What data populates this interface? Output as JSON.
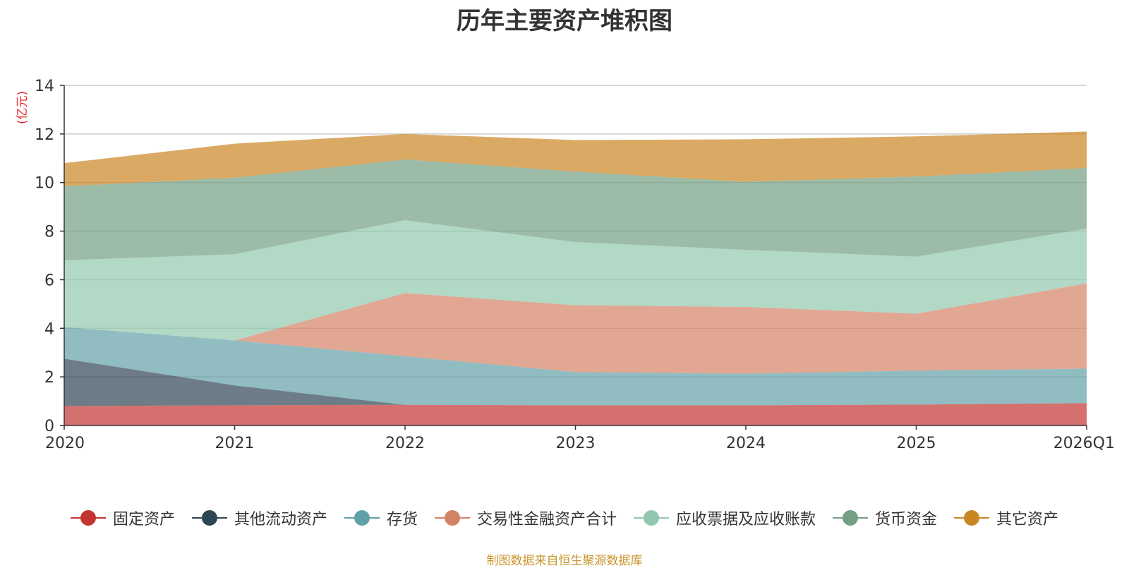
{
  "chart_data": {
    "type": "area",
    "stacked": true,
    "title": "历年主要资产堆积图",
    "ylabel": "(亿元)",
    "ylim": [
      0,
      14
    ],
    "yticks": [
      0,
      2,
      4,
      6,
      8,
      10,
      12,
      14
    ],
    "categories": [
      "2020",
      "2021",
      "2022",
      "2023",
      "2024",
      "2025",
      "2026Q1"
    ],
    "series": [
      {
        "name": "固定资产",
        "color": "#c23531",
        "values": [
          0.8,
          0.83,
          0.85,
          0.83,
          0.83,
          0.86,
          0.92
        ]
      },
      {
        "name": "其他流动资产",
        "color": "#2f4554",
        "values": [
          1.95,
          0.82,
          0.0,
          0.0,
          0.0,
          0.0,
          0.0
        ]
      },
      {
        "name": "存货",
        "color": "#61a0a8",
        "values": [
          1.3,
          1.85,
          2.0,
          1.37,
          1.3,
          1.4,
          1.42
        ]
      },
      {
        "name": "交易性金融资产合计",
        "color": "#d48265",
        "values": [
          0.0,
          0.0,
          2.6,
          2.75,
          2.75,
          2.34,
          3.51
        ]
      },
      {
        "name": "应收票据及应收账款",
        "color": "#91c7ae",
        "values": [
          2.75,
          3.55,
          3.0,
          2.6,
          2.35,
          2.35,
          2.25
        ]
      },
      {
        "name": "货币资金",
        "color": "#749f83",
        "values": [
          3.05,
          3.15,
          2.5,
          2.9,
          2.8,
          3.3,
          2.5
        ]
      },
      {
        "name": "其它资产",
        "color": "#ca8622",
        "values": [
          0.95,
          1.4,
          1.05,
          1.3,
          1.75,
          1.65,
          1.5
        ]
      }
    ]
  },
  "source_note": "制图数据来自恒生聚源数据库"
}
